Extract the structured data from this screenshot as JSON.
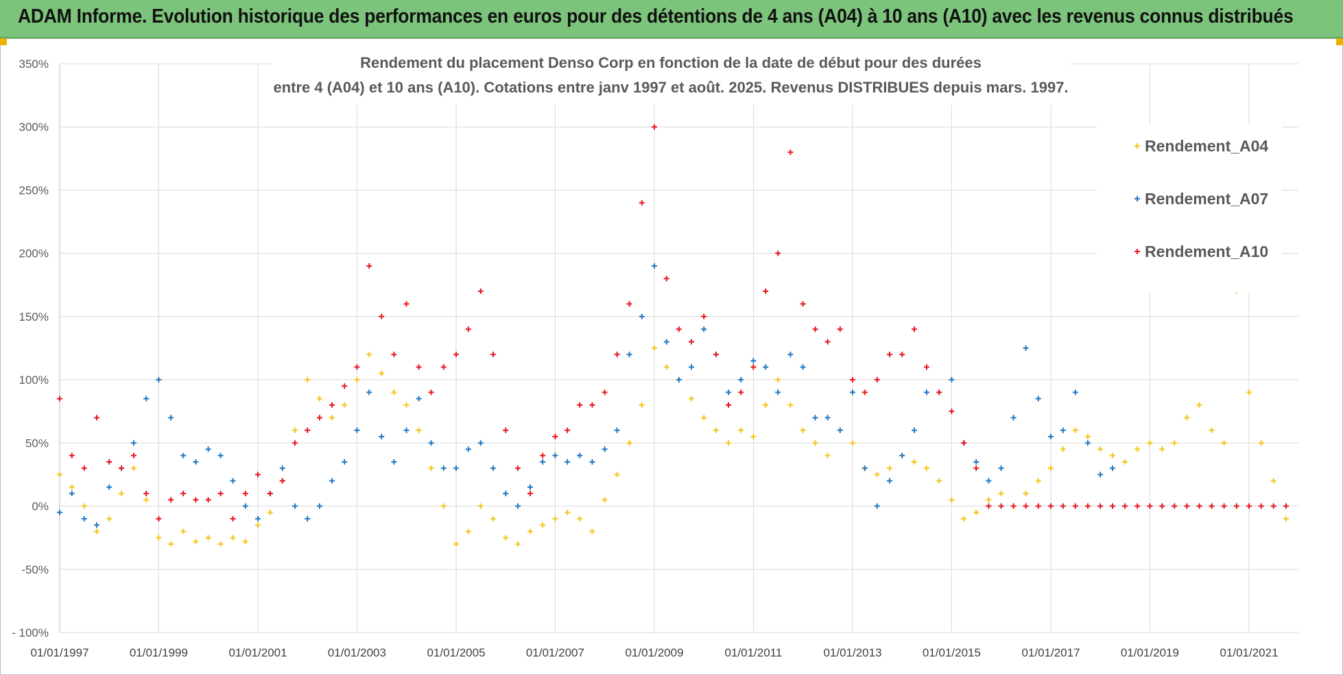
{
  "header": {
    "banner_title": "ADAM Informe. Evolution historique des performances en euros pour des détentions de 4 ans (A04) à 10 ans (A10) avec les revenus connus distribués"
  },
  "colors": {
    "banner_bg": "#7cc47c",
    "series_a04": "#f5c518",
    "series_a07": "#1f77c4",
    "series_a10": "#e8141c",
    "grid": "#d9d9d9"
  },
  "chart_data": {
    "type": "scatter",
    "marker": "plus",
    "title_line1": "Rendement du placement Denso Corp en fonction de la date de début pour des durées",
    "title_line2": "entre 4 (A04) et 10 ans (A10). Cotations entre janv 1997 et août. 2025. Revenus DISTRIBUES depuis mars. 1997.",
    "xlim": [
      "1997-01-01",
      "2021-12-31"
    ],
    "ylim": [
      -1.0,
      3.5
    ],
    "yticks": [
      -1.0,
      -0.5,
      0,
      0.5,
      1.0,
      1.5,
      2.0,
      2.5,
      3.0,
      3.5
    ],
    "ytick_labels": [
      "- 100%",
      "-50%",
      "0%",
      "50%",
      "100%",
      "150%",
      "200%",
      "250%",
      "300%",
      "350%"
    ],
    "xtick_labels": [
      "01/01/1997",
      "01/01/1999",
      "01/01/2001",
      "01/01/2003",
      "01/01/2005",
      "01/01/2007",
      "01/01/2009",
      "01/01/2011",
      "01/01/2013",
      "01/01/2015",
      "01/01/2017",
      "01/01/2019",
      "01/01/2021"
    ],
    "xtick_values": [
      "1997-01-01",
      "1999-01-01",
      "2001-01-01",
      "2003-01-01",
      "2005-01-01",
      "2007-01-01",
      "2009-01-01",
      "2011-01-01",
      "2013-01-01",
      "2015-01-01",
      "2017-01-01",
      "2019-01-01",
      "2021-01-01"
    ],
    "grid": true,
    "legend_position": "top-right",
    "series": [
      {
        "name": "Rendement_A04",
        "color": "#f5c518",
        "x": [
          "1997-01-01",
          "1997-04-01",
          "1997-07-01",
          "1997-10-01",
          "1998-01-01",
          "1998-04-01",
          "1998-07-01",
          "1998-10-01",
          "1999-01-01",
          "1999-04-01",
          "1999-07-01",
          "1999-10-01",
          "2000-01-01",
          "2000-04-01",
          "2000-07-01",
          "2000-10-01",
          "2001-01-01",
          "2001-04-01",
          "2001-07-01",
          "2001-10-01",
          "2002-01-01",
          "2002-04-01",
          "2002-07-01",
          "2002-10-01",
          "2003-01-01",
          "2003-04-01",
          "2003-07-01",
          "2003-10-01",
          "2004-01-01",
          "2004-04-01",
          "2004-07-01",
          "2004-10-01",
          "2005-01-01",
          "2005-04-01",
          "2005-07-01",
          "2005-10-01",
          "2006-01-01",
          "2006-04-01",
          "2006-07-01",
          "2006-10-01",
          "2007-01-01",
          "2007-04-01",
          "2007-07-01",
          "2007-10-01",
          "2008-01-01",
          "2008-04-01",
          "2008-07-01",
          "2008-10-01",
          "2009-01-01",
          "2009-04-01",
          "2009-07-01",
          "2009-10-01",
          "2010-01-01",
          "2010-04-01",
          "2010-07-01",
          "2010-10-01",
          "2011-01-01",
          "2011-04-01",
          "2011-07-01",
          "2011-10-01",
          "2012-01-01",
          "2012-04-01",
          "2012-07-01",
          "2012-10-01",
          "2013-01-01",
          "2013-04-01",
          "2013-07-01",
          "2013-10-01",
          "2014-01-01",
          "2014-04-01",
          "2014-07-01",
          "2014-10-01",
          "2015-01-01",
          "2015-04-01",
          "2015-07-01",
          "2015-10-01",
          "2016-01-01",
          "2016-04-01",
          "2016-07-01",
          "2016-10-01",
          "2017-01-01",
          "2017-04-01",
          "2017-07-01",
          "2017-10-01",
          "2018-01-01",
          "2018-04-01",
          "2018-07-01",
          "2018-10-01",
          "2019-01-01",
          "2019-04-01",
          "2019-07-01",
          "2019-10-01",
          "2020-01-01",
          "2020-04-01",
          "2020-07-01",
          "2020-10-01",
          "2021-01-01",
          "2021-04-01",
          "2021-07-01",
          "2021-10-01"
        ],
        "values": [
          0.25,
          0.15,
          0.0,
          -0.2,
          -0.1,
          0.1,
          0.3,
          0.05,
          -0.25,
          -0.3,
          -0.2,
          -0.28,
          -0.25,
          -0.3,
          -0.25,
          -0.28,
          -0.15,
          -0.05,
          0.2,
          0.6,
          1.0,
          0.85,
          0.7,
          0.8,
          1.0,
          1.2,
          1.05,
          0.9,
          0.8,
          0.6,
          0.3,
          0.0,
          -0.3,
          -0.2,
          0.0,
          -0.1,
          -0.25,
          -0.3,
          -0.2,
          -0.15,
          -0.1,
          -0.05,
          -0.1,
          -0.2,
          0.05,
          0.25,
          0.5,
          0.8,
          1.25,
          1.1,
          1.0,
          0.85,
          0.7,
          0.6,
          0.5,
          0.6,
          0.55,
          0.8,
          1.0,
          0.8,
          0.6,
          0.5,
          0.4,
          0.6,
          0.5,
          0.3,
          0.25,
          0.3,
          0.4,
          0.35,
          0.3,
          0.2,
          0.05,
          -0.1,
          -0.05,
          0.05,
          0.1,
          0.0,
          0.1,
          0.2,
          0.3,
          0.45,
          0.6,
          0.55,
          0.45,
          0.4,
          0.35,
          0.45,
          0.5,
          0.45,
          0.5,
          0.7,
          0.8,
          0.6,
          0.5,
          1.7,
          0.9,
          0.5,
          0.2,
          -0.1
        ]
      },
      {
        "name": "Rendement_A07",
        "color": "#1f77c4",
        "x": [
          "1997-01-01",
          "1997-04-01",
          "1997-07-01",
          "1997-10-01",
          "1998-01-01",
          "1998-04-01",
          "1998-07-01",
          "1998-10-01",
          "1999-01-01",
          "1999-04-01",
          "1999-07-01",
          "1999-10-01",
          "2000-01-01",
          "2000-04-01",
          "2000-07-01",
          "2000-10-01",
          "2001-01-01",
          "2001-04-01",
          "2001-07-01",
          "2001-10-01",
          "2002-01-01",
          "2002-04-01",
          "2002-07-01",
          "2002-10-01",
          "2003-01-01",
          "2003-04-01",
          "2003-07-01",
          "2003-10-01",
          "2004-01-01",
          "2004-04-01",
          "2004-07-01",
          "2004-10-01",
          "2005-01-01",
          "2005-04-01",
          "2005-07-01",
          "2005-10-01",
          "2006-01-01",
          "2006-04-01",
          "2006-07-01",
          "2006-10-01",
          "2007-01-01",
          "2007-04-01",
          "2007-07-01",
          "2007-10-01",
          "2008-01-01",
          "2008-04-01",
          "2008-07-01",
          "2008-10-01",
          "2009-01-01",
          "2009-04-01",
          "2009-07-01",
          "2009-10-01",
          "2010-01-01",
          "2010-04-01",
          "2010-07-01",
          "2010-10-01",
          "2011-01-01",
          "2011-04-01",
          "2011-07-01",
          "2011-10-01",
          "2012-01-01",
          "2012-04-01",
          "2012-07-01",
          "2012-10-01",
          "2013-01-01",
          "2013-04-01",
          "2013-07-01",
          "2013-10-01",
          "2014-01-01",
          "2014-04-01",
          "2014-07-01",
          "2014-10-01",
          "2015-01-01",
          "2015-04-01",
          "2015-07-01",
          "2015-10-01",
          "2016-01-01",
          "2016-04-01",
          "2016-07-01",
          "2016-10-01",
          "2017-01-01",
          "2017-04-01",
          "2017-07-01",
          "2017-10-01",
          "2018-01-01",
          "2018-04-01"
        ],
        "values": [
          -0.05,
          0.1,
          -0.1,
          -0.15,
          0.15,
          0.3,
          0.5,
          0.85,
          1.0,
          0.7,
          0.4,
          0.35,
          0.45,
          0.4,
          0.2,
          0.0,
          -0.1,
          0.1,
          0.3,
          0.0,
          -0.1,
          0.0,
          0.2,
          0.35,
          0.6,
          0.9,
          0.55,
          0.35,
          0.6,
          0.85,
          0.5,
          0.3,
          0.3,
          0.45,
          0.5,
          0.3,
          0.1,
          0.0,
          0.15,
          0.35,
          0.4,
          0.35,
          0.4,
          0.35,
          0.45,
          0.6,
          1.2,
          1.5,
          1.9,
          1.3,
          1.0,
          1.1,
          1.4,
          1.2,
          0.9,
          1.0,
          1.15,
          1.1,
          0.9,
          1.2,
          1.1,
          0.7,
          0.7,
          0.6,
          0.9,
          0.3,
          0.0,
          0.2,
          0.4,
          0.6,
          0.9,
          0.9,
          1.0,
          0.5,
          0.35,
          0.2,
          0.3,
          0.7,
          1.25,
          0.85,
          0.55,
          0.6,
          0.9,
          0.5,
          0.25,
          0.3
        ]
      },
      {
        "name": "Rendement_A10",
        "color": "#e8141c",
        "x": [
          "1997-01-01",
          "1997-04-01",
          "1997-07-01",
          "1997-10-01",
          "1998-01-01",
          "1998-04-01",
          "1998-07-01",
          "1998-10-01",
          "1999-01-01",
          "1999-04-01",
          "1999-07-01",
          "1999-10-01",
          "2000-01-01",
          "2000-04-01",
          "2000-07-01",
          "2000-10-01",
          "2001-01-01",
          "2001-04-01",
          "2001-07-01",
          "2001-10-01",
          "2002-01-01",
          "2002-04-01",
          "2002-07-01",
          "2002-10-01",
          "2003-01-01",
          "2003-04-01",
          "2003-07-01",
          "2003-10-01",
          "2004-01-01",
          "2004-04-01",
          "2004-07-01",
          "2004-10-01",
          "2005-01-01",
          "2005-04-01",
          "2005-07-01",
          "2005-10-01",
          "2006-01-01",
          "2006-04-01",
          "2006-07-01",
          "2006-10-01",
          "2007-01-01",
          "2007-04-01",
          "2007-07-01",
          "2007-10-01",
          "2008-01-01",
          "2008-04-01",
          "2008-07-01",
          "2008-10-01",
          "2009-01-01",
          "2009-04-01",
          "2009-07-01",
          "2009-10-01",
          "2010-01-01",
          "2010-04-01",
          "2010-07-01",
          "2010-10-01",
          "2011-01-01",
          "2011-04-01",
          "2011-07-01",
          "2011-10-01",
          "2012-01-01",
          "2012-04-01",
          "2012-07-01",
          "2012-10-01",
          "2013-01-01",
          "2013-04-01",
          "2013-07-01",
          "2013-10-01",
          "2014-01-01",
          "2014-04-01",
          "2014-07-01",
          "2014-10-01",
          "2015-01-01",
          "2015-04-01",
          "2015-07-01",
          "2015-10-01",
          "2016-01-01",
          "2016-04-01",
          "2016-07-01",
          "2016-10-01",
          "2017-01-01",
          "2017-04-01",
          "2017-07-01",
          "2017-10-01",
          "2018-01-01",
          "2018-04-01",
          "2018-07-01",
          "2018-10-01",
          "2019-01-01",
          "2019-04-01",
          "2019-07-01",
          "2019-10-01",
          "2020-01-01",
          "2020-04-01",
          "2020-07-01",
          "2020-10-01",
          "2021-01-01",
          "2021-04-01",
          "2021-07-01",
          "2021-10-01"
        ],
        "values": [
          0.85,
          0.4,
          0.3,
          0.7,
          0.35,
          0.3,
          0.4,
          0.1,
          -0.1,
          0.05,
          0.1,
          0.05,
          0.05,
          0.1,
          -0.1,
          0.1,
          0.25,
          0.1,
          0.2,
          0.5,
          0.6,
          0.7,
          0.8,
          0.95,
          1.1,
          1.9,
          1.5,
          1.2,
          1.6,
          1.1,
          0.9,
          1.1,
          1.2,
          1.4,
          1.7,
          1.2,
          0.6,
          0.3,
          0.1,
          0.4,
          0.55,
          0.6,
          0.8,
          0.8,
          0.9,
          1.2,
          1.6,
          2.4,
          3.0,
          1.8,
          1.4,
          1.3,
          1.5,
          1.2,
          0.8,
          0.9,
          1.1,
          1.7,
          2.0,
          2.8,
          1.6,
          1.4,
          1.3,
          1.4,
          1.0,
          0.9,
          1.0,
          1.2,
          1.2,
          1.4,
          1.1,
          0.9,
          0.75,
          0.5,
          0.3,
          0.0,
          0.0,
          0.0,
          0.0,
          0.0,
          0.0,
          0.0,
          0.0,
          0.0,
          0.0,
          0.0,
          0.0,
          0.0,
          0.0,
          0.0,
          0.0,
          0.0,
          0.0,
          0.0,
          0.0,
          0.0,
          0.0,
          0.0,
          0.0,
          0.0
        ]
      }
    ]
  }
}
